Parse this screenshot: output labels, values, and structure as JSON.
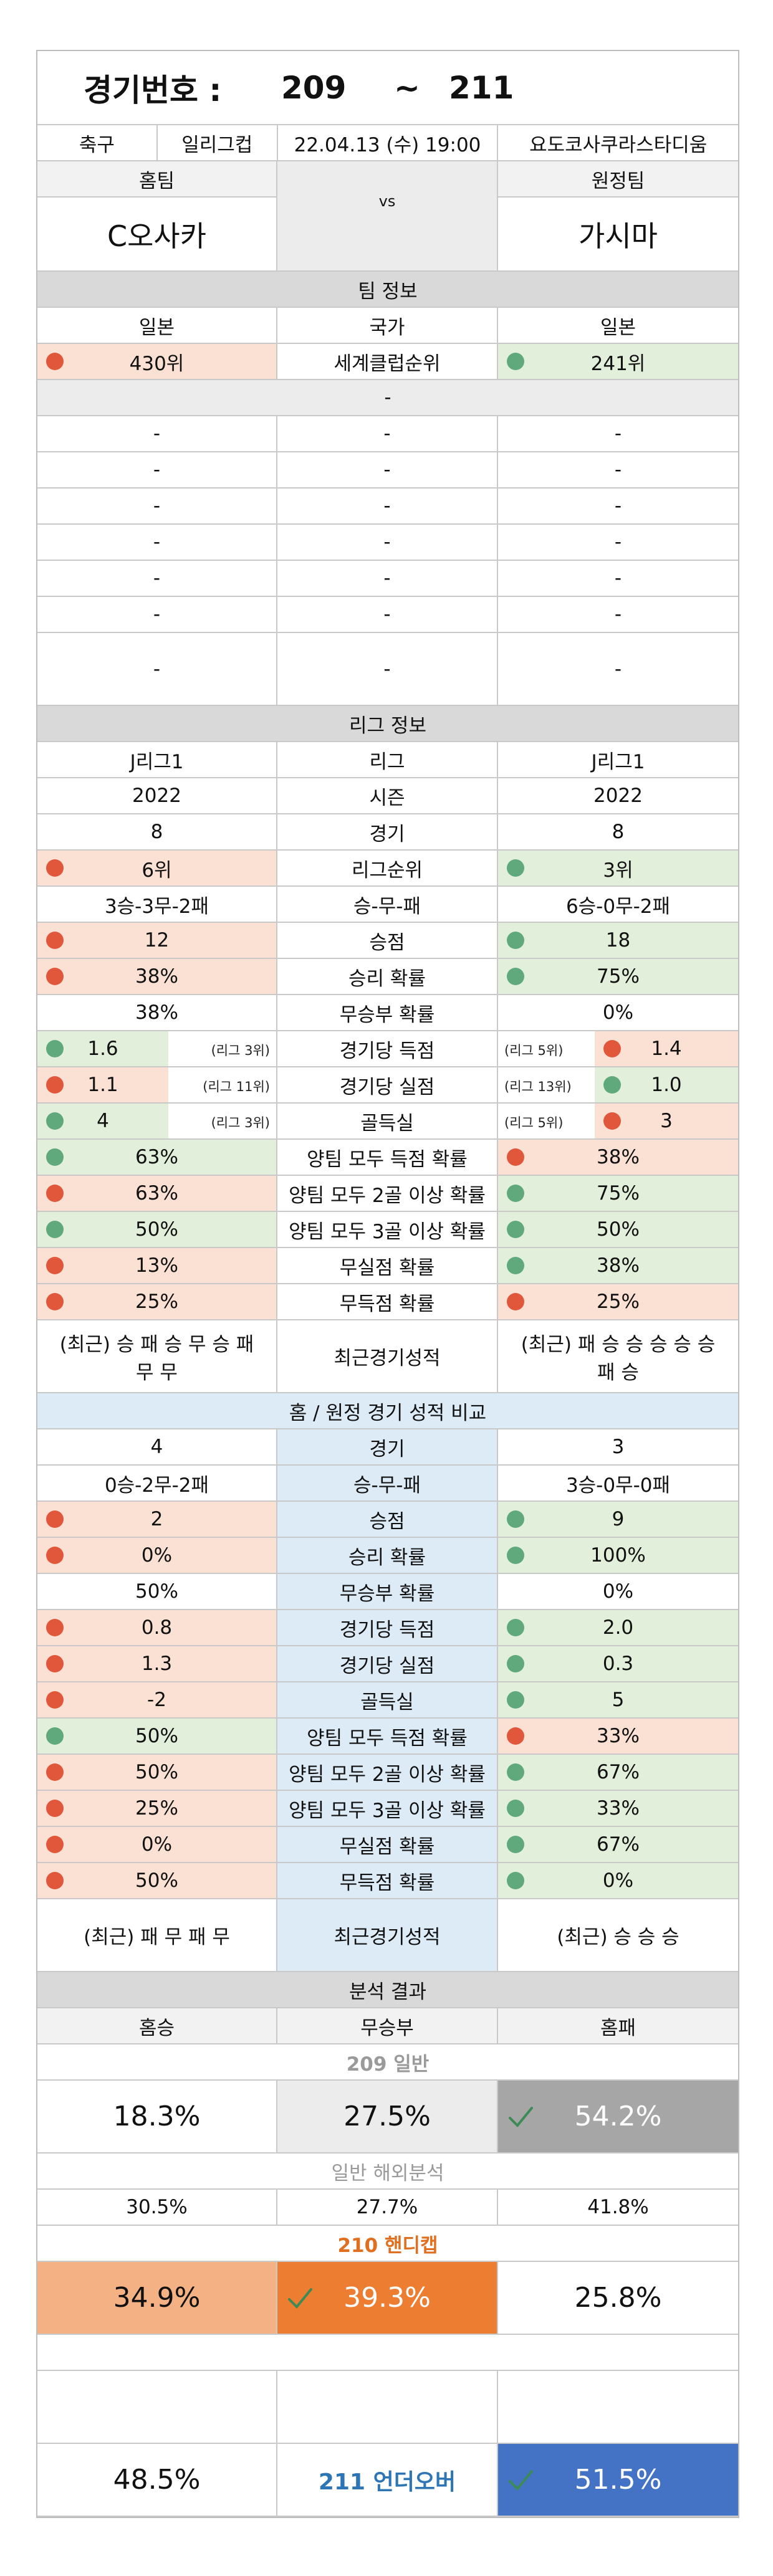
{
  "header": {
    "label": "경기번호 :",
    "from": "209",
    "sep": "~",
    "to": "211"
  },
  "match": {
    "sport": "축구",
    "league": "일리그컵",
    "datetime": "22.04.13 (수) 19:00",
    "venue": "요도코사쿠라스타디움"
  },
  "teams": {
    "home_label": "홈팀",
    "vs": "vs",
    "away_label": "원정팀",
    "home": "C오사카",
    "away": "가시마"
  },
  "team_info": {
    "title": "팀 정보",
    "rows": [
      {
        "home": "일본",
        "label": "국가",
        "away": "일본"
      },
      {
        "home": "430위",
        "label": "세계클럽순위",
        "away": "241위",
        "home_dot": "red",
        "away_dot": "green"
      }
    ],
    "note": "-",
    "more_rows": [
      {
        "home": "-",
        "label": "-",
        "away": "-"
      },
      {
        "home": "-",
        "label": "-",
        "away": "-"
      },
      {
        "home": "-",
        "label": "-",
        "away": "-"
      },
      {
        "home": "-",
        "label": "-",
        "away": "-"
      },
      {
        "home": "-",
        "label": "-",
        "away": "-"
      },
      {
        "home": "-",
        "label": "-",
        "away": "-"
      },
      {
        "home": "-",
        "label": "-",
        "away": "-"
      }
    ]
  },
  "league_info": {
    "title": "리그 정보",
    "rows": [
      {
        "home": "J리그1",
        "label": "리그",
        "away": "J리그1"
      },
      {
        "home": "2022",
        "label": "시즌",
        "away": "2022"
      },
      {
        "home": "8",
        "label": "경기",
        "away": "8"
      },
      {
        "home": "6위",
        "label": "리그순위",
        "away": "3위",
        "home_dot": "red",
        "away_dot": "green"
      },
      {
        "home": "3승-3무-2패",
        "label": "승-무-패",
        "away": "6승-0무-2패"
      },
      {
        "home": "12",
        "label": "승점",
        "away": "18",
        "home_dot": "red",
        "away_dot": "green"
      },
      {
        "home": "38%",
        "label": "승리 확률",
        "away": "75%",
        "home_dot": "red",
        "away_dot": "green"
      },
      {
        "home": "38%",
        "label": "무승부 확률",
        "away": "0%"
      },
      {
        "home": "1.6",
        "home_note": "(리그 3위)",
        "label": "경기당 득점",
        "away_note": "(리그 5위)",
        "away": "1.4",
        "home_dot": "green",
        "away_dot": "red"
      },
      {
        "home": "1.1",
        "home_note": "(리그 11위)",
        "label": "경기당 실점",
        "away_note": "(리그 13위)",
        "away": "1.0",
        "home_dot": "red",
        "away_dot": "green"
      },
      {
        "home": "4",
        "home_note": "(리그 3위)",
        "label": "골득실",
        "away_note": "(리그 5위)",
        "away": "3",
        "home_dot": "green",
        "away_dot": "red"
      },
      {
        "home": "63%",
        "label": "양팀 모두 득점 확률",
        "away": "38%",
        "home_dot": "green",
        "away_dot": "red"
      },
      {
        "home": "63%",
        "label": "양팀 모두 2골 이상 확률",
        "away": "75%",
        "home_dot": "red",
        "away_dot": "green"
      },
      {
        "home": "50%",
        "label": "양팀 모두 3골 이상 확률",
        "away": "50%",
        "home_dot": "green",
        "away_dot": "green"
      },
      {
        "home": "13%",
        "label": "무실점 확률",
        "away": "38%",
        "home_dot": "red",
        "away_dot": "green"
      },
      {
        "home": "25%",
        "label": "무득점 확률",
        "away": "25%",
        "home_dot": "red",
        "away_dot": "red"
      },
      {
        "home": "(최근) 승 패 승 무 승 패 무 무",
        "label": "최근경기성적",
        "away": "(최근) 패 승 승 승 승 승 패 승"
      }
    ]
  },
  "home_away": {
    "title": "홈 / 원정 경기 성적 비교",
    "rows": [
      {
        "home": "4",
        "label": "경기",
        "away": "3"
      },
      {
        "home": "0승-2무-2패",
        "label": "승-무-패",
        "away": "3승-0무-0패"
      },
      {
        "home": "2",
        "label": "승점",
        "away": "9",
        "home_dot": "red",
        "away_dot": "green"
      },
      {
        "home": "0%",
        "label": "승리 확률",
        "away": "100%",
        "home_dot": "red",
        "away_dot": "green"
      },
      {
        "home": "50%",
        "label": "무승부 확률",
        "away": "0%"
      },
      {
        "home": "0.8",
        "label": "경기당 득점",
        "away": "2.0",
        "home_dot": "red",
        "away_dot": "green"
      },
      {
        "home": "1.3",
        "label": "경기당 실점",
        "away": "0.3",
        "home_dot": "red",
        "away_dot": "green"
      },
      {
        "home": "-2",
        "label": "골득실",
        "away": "5",
        "home_dot": "red",
        "away_dot": "green"
      },
      {
        "home": "50%",
        "label": "양팀 모두 득점 확률",
        "away": "33%",
        "home_dot": "green",
        "away_dot": "red"
      },
      {
        "home": "50%",
        "label": "양팀 모두 2골 이상 확률",
        "away": "67%",
        "home_dot": "red",
        "away_dot": "green"
      },
      {
        "home": "25%",
        "label": "양팀 모두 3골 이상 확률",
        "away": "33%",
        "home_dot": "red",
        "away_dot": "green"
      },
      {
        "home": "0%",
        "label": "무실점 확률",
        "away": "67%",
        "home_dot": "red",
        "away_dot": "green"
      },
      {
        "home": "50%",
        "label": "무득점 확률",
        "away": "0%",
        "home_dot": "red",
        "away_dot": "green"
      },
      {
        "home": "(최근) 패 무 패 무",
        "label": "최근경기성적",
        "away": "(최근) 승 승 승"
      }
    ]
  },
  "analysis": {
    "title": "분석 결과",
    "columns": [
      "홈승",
      "무승부",
      "홈패"
    ],
    "general": {
      "title": "209 일반",
      "values": [
        "18.3%",
        "27.5%",
        "54.2%"
      ],
      "pick": 2
    },
    "overseas": {
      "title": "일반 해외분석",
      "values": [
        "30.5%",
        "27.7%",
        "41.8%"
      ]
    },
    "handicap": {
      "title": "210 핸디캡",
      "values": [
        "34.9%",
        "39.3%",
        "25.8%"
      ],
      "pick": 1
    },
    "under_over": {
      "title": "211 언더오버",
      "values": [
        "48.5%",
        "51.5%"
      ],
      "pick": 1
    }
  }
}
